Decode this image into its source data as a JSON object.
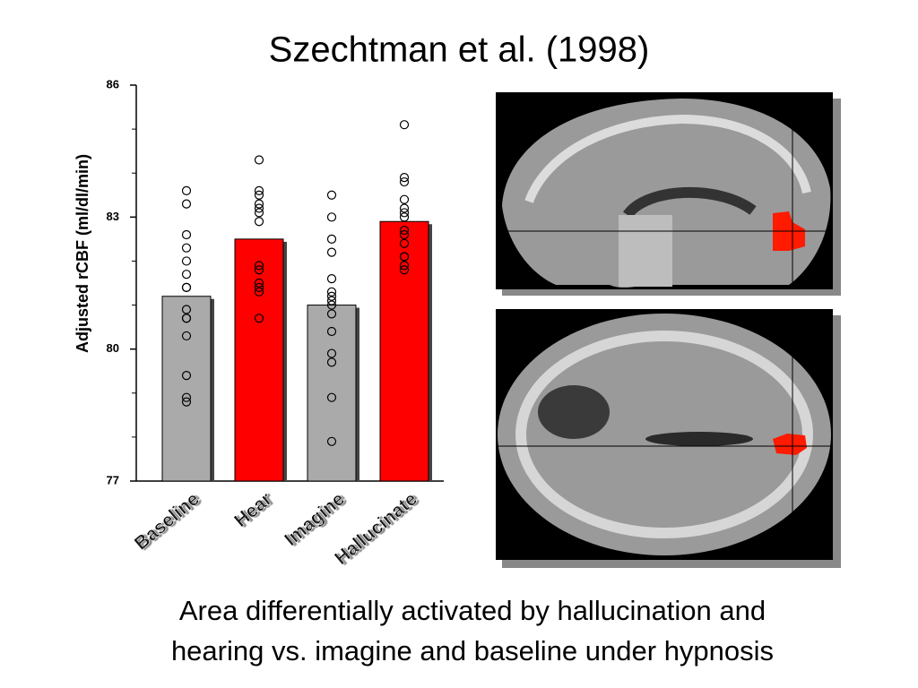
{
  "title": "Szechtman et al. (1998)",
  "caption": [
    "Area differentially activated by hallucination and",
    "hearing vs. imagine and baseline under hypnosis"
  ],
  "chart_data": {
    "type": "bar",
    "ylabel": "Adjusted rCBF (ml/dl/min)",
    "categories": [
      "Baseline",
      "Hear",
      "Imagine",
      "Hallucinate"
    ],
    "values": [
      81.2,
      82.5,
      81.0,
      82.9
    ],
    "colors": [
      "#aaaaaa",
      "#ff0000",
      "#aaaaaa",
      "#ff0000"
    ],
    "points": [
      [
        83.6,
        83.3,
        82.6,
        82.3,
        82.0,
        81.7,
        81.4,
        81.4,
        80.9,
        80.7,
        80.7,
        80.3,
        79.4,
        78.9,
        78.8
      ],
      [
        84.3,
        83.6,
        83.5,
        83.3,
        83.2,
        83.1,
        82.9,
        81.9,
        81.8,
        81.5,
        81.4,
        81.3,
        80.7
      ],
      [
        83.5,
        83.0,
        82.5,
        82.2,
        81.6,
        81.3,
        81.2,
        81.1,
        81.0,
        80.8,
        80.4,
        79.9,
        79.7,
        78.9,
        77.9
      ],
      [
        85.1,
        83.9,
        83.8,
        83.4,
        83.2,
        83.1,
        83.0,
        82.7,
        82.6,
        82.4,
        82.1,
        82.1,
        81.9,
        81.8
      ]
    ],
    "ylim": [
      77,
      86
    ],
    "yticks": [
      77,
      80,
      83,
      86
    ],
    "yminorticks": [
      78,
      79,
      81,
      82,
      84,
      85
    ]
  }
}
